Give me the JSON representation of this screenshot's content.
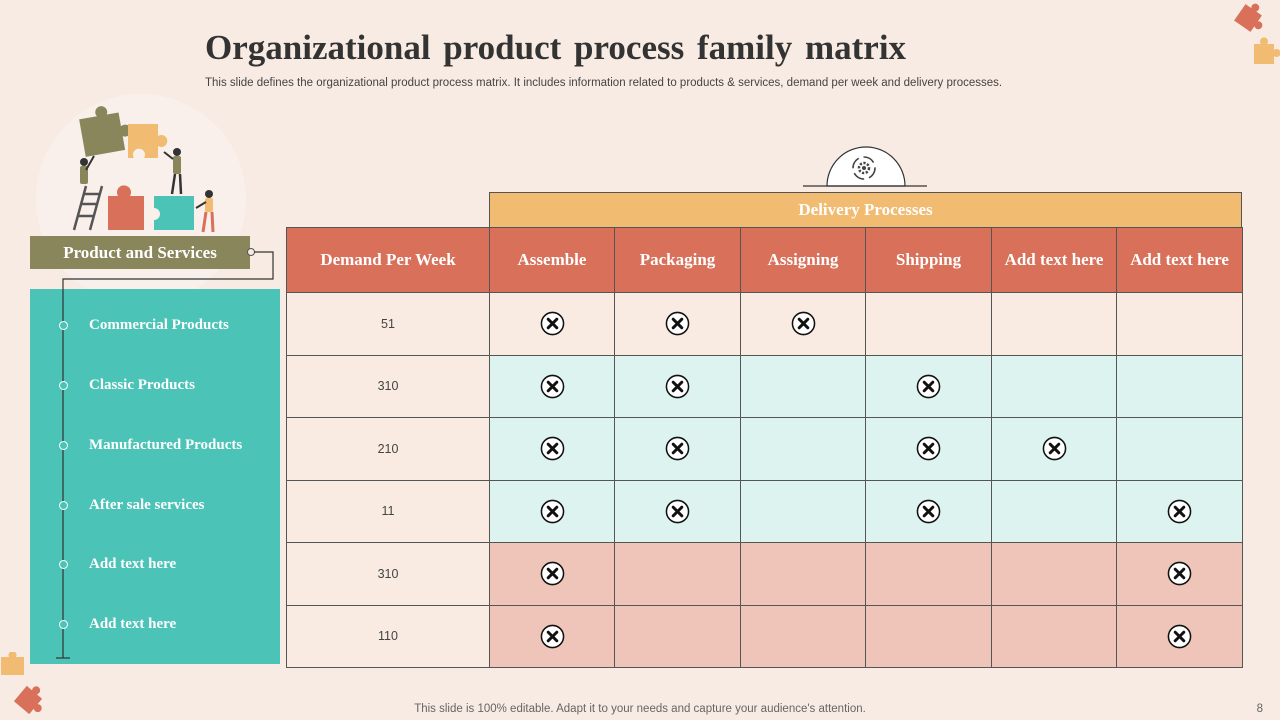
{
  "title": "Organizational product process family matrix",
  "subtitle": "This slide defines the organizational product process matrix. It includes information related to products & services, demand per week and delivery processes.",
  "footer": "This slide is 100% editable. Adapt it to your needs and capture your audience's attention.",
  "page_number": "8",
  "products": {
    "label": "Product and Services",
    "items": [
      "Commercial  Products",
      "Classic Products",
      "Manufactured  Products",
      "After sale services",
      "Add  text here",
      "Add  text here"
    ]
  },
  "matrix": {
    "group_header": "Delivery Processes",
    "columns": [
      "Demand Per Week",
      "Assemble",
      "Packaging",
      "Assigning",
      "Shipping",
      "Add text here",
      "Add text here"
    ],
    "rows": [
      {
        "demand": "51",
        "marks": [
          true,
          true,
          true,
          false,
          false,
          false
        ]
      },
      {
        "demand": "310",
        "marks": [
          true,
          true,
          false,
          true,
          false,
          false
        ]
      },
      {
        "demand": "210",
        "marks": [
          true,
          true,
          false,
          true,
          true,
          false
        ]
      },
      {
        "demand": "11",
        "marks": [
          true,
          true,
          false,
          true,
          false,
          true
        ]
      },
      {
        "demand": "310",
        "marks": [
          true,
          false,
          false,
          false,
          false,
          true
        ]
      },
      {
        "demand": "110",
        "marks": [
          true,
          false,
          false,
          false,
          false,
          true
        ]
      }
    ]
  },
  "colors": {
    "background": "#f8ebe3",
    "teal": "#4cc3b7",
    "olive": "#8a865c",
    "header_red": "#d8705a",
    "header_orange": "#f2bb72",
    "row_teal": "#dcf3f0",
    "row_pink": "#efc5b9"
  },
  "icons": {
    "check_mark": "x-circle-icon",
    "header_badge": "gear-cycle-icon",
    "illustration": "puzzle-team-icon"
  }
}
